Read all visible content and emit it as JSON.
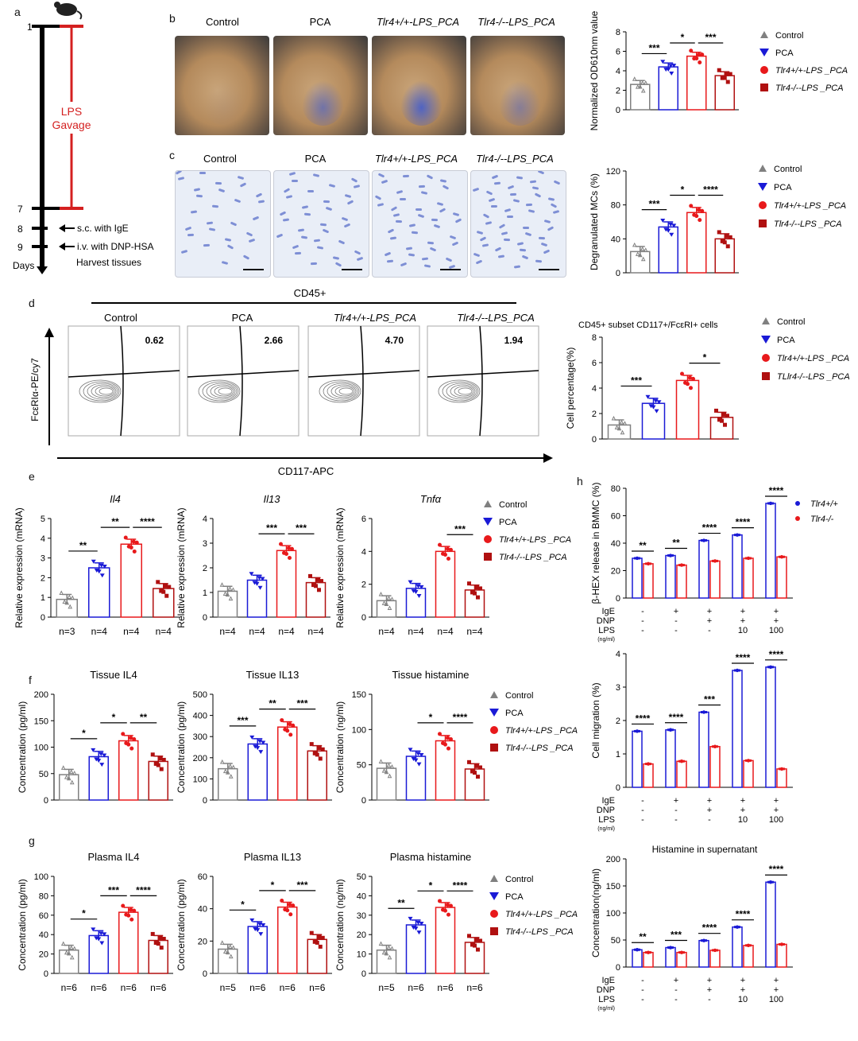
{
  "panel_letters": [
    "a",
    "b",
    "c",
    "d",
    "e",
    "f",
    "g",
    "h"
  ],
  "timeline": {
    "days": [
      "1",
      "7",
      "8",
      "9"
    ],
    "days_label": "Days",
    "gavage_label": [
      "LPS",
      "Gavage"
    ],
    "steps": [
      "s.c. with IgE",
      "i.v. with DNP-HSA",
      "Harvest tissues"
    ]
  },
  "groups": [
    "Control",
    "PCA",
    "Tlr4+/+-LPS_PCA",
    "Tlr4-/--LPS_PCA"
  ],
  "legend": {
    "control": "Control",
    "pca": "PCA",
    "wt": "Tlr4+/+-LPS _PCA",
    "ko": "Tlr4-/--LPS _PCA",
    "ko_d": "TLlr4-/--LPS _PCA"
  },
  "colors": {
    "control": "#808080",
    "pca": "#1a1ad6",
    "wt": "#e8191b",
    "ko": "#b01010"
  },
  "cd45_label": "CD45+",
  "d_title": "CD45+ subset CD117+/FcεRI+ cells",
  "facs": {
    "values": [
      "0.62",
      "2.66",
      "4.70",
      "1.94"
    ],
    "ylabel": "FcεRIα-PE/cy7",
    "xlabel": "CD117-APC"
  },
  "h_legend": {
    "wt": "Tlr4+/+",
    "ko": "Tlr4-/-"
  },
  "treatments": {
    "labels": [
      "IgE",
      "DNP",
      "LPS"
    ],
    "unit": "(ng/ml)",
    "rows": [
      [
        "-",
        "+",
        "+",
        "+",
        "+"
      ],
      [
        "-",
        "-",
        "+",
        "+",
        "+"
      ],
      [
        "-",
        "-",
        "-",
        "10",
        "100"
      ]
    ]
  },
  "chart_data": [
    {
      "id": "b",
      "type": "bar",
      "title": "",
      "ylabel": "Normalized OD610nm value",
      "ylim": [
        0,
        8
      ],
      "ticks": [
        0,
        2,
        4,
        6,
        8
      ],
      "categories": [
        "Control",
        "PCA",
        "Tlr4+/+-LPS_PCA",
        "Tlr4-/--LPS_PCA"
      ],
      "values": [
        2.6,
        4.4,
        5.5,
        3.5
      ],
      "sig": [
        {
          "a": 0,
          "b": 1,
          "t": "***"
        },
        {
          "a": 1,
          "b": 2,
          "t": "*"
        },
        {
          "a": 2,
          "b": 3,
          "t": "***"
        }
      ],
      "n": []
    },
    {
      "id": "c",
      "type": "bar",
      "title": "",
      "ylabel": "Degranulated MCs (%)",
      "ylim": [
        0,
        120
      ],
      "ticks": [
        0,
        40,
        80,
        120
      ],
      "categories": [
        "Control",
        "PCA",
        "Tlr4+/+-LPS_PCA",
        "Tlr4-/--LPS_PCA"
      ],
      "values": [
        25,
        54,
        71,
        40
      ],
      "sig": [
        {
          "a": 0,
          "b": 1,
          "t": "***"
        },
        {
          "a": 1,
          "b": 2,
          "t": "*"
        },
        {
          "a": 2,
          "b": 3,
          "t": "****"
        }
      ],
      "n": []
    },
    {
      "id": "d",
      "type": "bar",
      "title": "",
      "ylabel": "Cell percentage(%)",
      "ylim": [
        0,
        8
      ],
      "ticks": [
        0,
        2,
        4,
        6,
        8
      ],
      "categories": [
        "Control",
        "PCA",
        "Tlr4+/+-LPS_PCA",
        "Tlr4-/--LPS_PCA"
      ],
      "values": [
        1.1,
        2.8,
        4.6,
        1.7
      ],
      "sig": [
        {
          "a": 0,
          "b": 1,
          "t": "***"
        },
        {
          "a": 2,
          "b": 3,
          "t": "*"
        }
      ],
      "n": []
    },
    {
      "id": "e1",
      "type": "bar",
      "title": "Il4",
      "italic": true,
      "ylabel": "Relative expression (mRNA)",
      "ylim": [
        0,
        5
      ],
      "ticks": [
        0,
        1,
        2,
        3,
        4,
        5
      ],
      "categories": [
        "Control",
        "PCA",
        "Tlr4+/+-LPS_PCA",
        "Tlr4-/--LPS_PCA"
      ],
      "values": [
        0.9,
        2.5,
        3.7,
        1.45
      ],
      "sig": [
        {
          "a": 0,
          "b": 1,
          "t": "**"
        },
        {
          "a": 1,
          "b": 2,
          "t": "**"
        },
        {
          "a": 2,
          "b": 3,
          "t": "****"
        }
      ],
      "n": [
        "n=3",
        "n=4",
        "n=4",
        "n=4"
      ]
    },
    {
      "id": "e2",
      "type": "bar",
      "title": "Il13",
      "italic": true,
      "ylabel": "Relative expression (mRNA)",
      "ylim": [
        0,
        4
      ],
      "ticks": [
        0,
        1,
        2,
        3,
        4
      ],
      "categories": [
        "Control",
        "PCA",
        "Tlr4+/+-LPS_PCA",
        "Tlr4-/--LPS_PCA"
      ],
      "values": [
        1.05,
        1.5,
        2.7,
        1.4
      ],
      "sig": [
        {
          "a": 1,
          "b": 2,
          "t": "***"
        },
        {
          "a": 2,
          "b": 3,
          "t": "***"
        }
      ],
      "n": [
        "n=4",
        "n=4",
        "n=4",
        "n=4"
      ]
    },
    {
      "id": "e3",
      "type": "bar",
      "title": "Tnfα",
      "italic": true,
      "ylabel": "Relative expression (mRNA)",
      "ylim": [
        0,
        6
      ],
      "ticks": [
        0,
        2,
        4,
        6
      ],
      "categories": [
        "Control",
        "PCA",
        "Tlr4+/+-LPS_PCA",
        "Tlr4-/--LPS_PCA"
      ],
      "values": [
        1.0,
        1.75,
        4.0,
        1.65
      ],
      "sig": [
        {
          "a": 2,
          "b": 3,
          "t": "***"
        }
      ],
      "n": [
        "n=4",
        "n=4",
        "n=4",
        "n=4"
      ]
    },
    {
      "id": "f1",
      "type": "bar",
      "title": "Tissue IL4",
      "ylabel": "Concentration (pg/ml)",
      "ylim": [
        0,
        200
      ],
      "ticks": [
        0,
        50,
        100,
        150,
        200
      ],
      "categories": [
        "Control",
        "PCA",
        "Tlr4+/+-LPS_PCA",
        "Tlr4-/--LPS_PCA"
      ],
      "values": [
        48,
        82,
        112,
        73
      ],
      "sig": [
        {
          "a": 0,
          "b": 1,
          "t": "*"
        },
        {
          "a": 1,
          "b": 2,
          "t": "*"
        },
        {
          "a": 2,
          "b": 3,
          "t": "**"
        }
      ],
      "n": []
    },
    {
      "id": "f2",
      "type": "bar",
      "title": "Tissue IL13",
      "ylabel": "Concentration (pg/ml)",
      "ylim": [
        0,
        500
      ],
      "ticks": [
        0,
        100,
        200,
        300,
        400,
        500
      ],
      "categories": [
        "Control",
        "PCA",
        "Tlr4+/+-LPS_PCA",
        "Tlr4-/--LPS_PCA"
      ],
      "values": [
        148,
        265,
        345,
        232
      ],
      "sig": [
        {
          "a": 0,
          "b": 1,
          "t": "***"
        },
        {
          "a": 1,
          "b": 2,
          "t": "**"
        },
        {
          "a": 2,
          "b": 3,
          "t": "***"
        }
      ],
      "n": []
    },
    {
      "id": "f3",
      "type": "bar",
      "title": "Tissue histamine",
      "ylabel": "Concentration (ng/ml)",
      "ylim": [
        0,
        150
      ],
      "ticks": [
        0,
        50,
        100,
        150
      ],
      "categories": [
        "Control",
        "PCA",
        "Tlr4+/+-LPS_PCA",
        "Tlr4-/--LPS_PCA"
      ],
      "values": [
        45,
        62,
        84,
        44
      ],
      "sig": [
        {
          "a": 1,
          "b": 2,
          "t": "*"
        },
        {
          "a": 2,
          "b": 3,
          "t": "****"
        }
      ],
      "n": []
    },
    {
      "id": "g1",
      "type": "bar",
      "title": "Plasma IL4",
      "ylabel": "Concentration (pg/ml)",
      "ylim": [
        0,
        100
      ],
      "ticks": [
        0,
        20,
        40,
        60,
        80,
        100
      ],
      "categories": [
        "Control",
        "PCA",
        "Tlr4+/+-LPS_PCA",
        "Tlr4-/--LPS_PCA"
      ],
      "values": [
        24,
        39,
        63,
        34
      ],
      "sig": [
        {
          "a": 0,
          "b": 1,
          "t": "*"
        },
        {
          "a": 1,
          "b": 2,
          "t": "***"
        },
        {
          "a": 2,
          "b": 3,
          "t": "****"
        }
      ],
      "n": [
        "n=6",
        "n=6",
        "n=6",
        "n=6"
      ]
    },
    {
      "id": "g2",
      "type": "bar",
      "title": "Plasma IL13",
      "ylabel": "Concentration (pg/ml)",
      "ylim": [
        0,
        60
      ],
      "ticks": [
        0,
        20,
        40,
        60
      ],
      "categories": [
        "Control",
        "PCA",
        "Tlr4+/+-LPS_PCA",
        "Tlr4-/--LPS_PCA"
      ],
      "values": [
        15,
        29,
        41,
        21
      ],
      "sig": [
        {
          "a": 0,
          "b": 1,
          "t": "*"
        },
        {
          "a": 1,
          "b": 2,
          "t": "*"
        },
        {
          "a": 2,
          "b": 3,
          "t": "***"
        }
      ],
      "n": [
        "n=5",
        "n=6",
        "n=6",
        "n=6"
      ]
    },
    {
      "id": "g3",
      "type": "bar",
      "title": "Plasma histamine",
      "ylabel": "Concentration (ng/ml)",
      "ylim": [
        0,
        50
      ],
      "ticks": [
        0,
        10,
        20,
        30,
        40,
        50
      ],
      "categories": [
        "Control",
        "PCA",
        "Tlr4+/+-LPS_PCA",
        "Tlr4-/--LPS_PCA"
      ],
      "values": [
        12,
        25,
        34,
        16
      ],
      "sig": [
        {
          "a": 0,
          "b": 1,
          "t": "**"
        },
        {
          "a": 1,
          "b": 2,
          "t": "*"
        },
        {
          "a": 2,
          "b": 3,
          "t": "****"
        }
      ],
      "n": [
        "n=5",
        "n=6",
        "n=6",
        "n=6"
      ]
    },
    {
      "id": "h1",
      "type": "grouped-bar",
      "title": "",
      "ylabel": "β-HEX release in BMMC (%)",
      "ylim": [
        0,
        80
      ],
      "ticks": [
        0,
        20,
        40,
        60,
        80
      ],
      "series": [
        {
          "name": "Tlr4+/+",
          "values": [
            29,
            31,
            42,
            46,
            69
          ]
        },
        {
          "name": "Tlr4-/-",
          "values": [
            25,
            24,
            27,
            29,
            30
          ]
        }
      ],
      "sig": [
        "**",
        "**",
        "****",
        "****",
        "****"
      ]
    },
    {
      "id": "h2",
      "type": "grouped-bar",
      "title": "",
      "ylabel": "Cell migration (%)",
      "ylim": [
        0,
        4
      ],
      "ticks": [
        0,
        1,
        2,
        3,
        4
      ],
      "series": [
        {
          "name": "Tlr4+/+",
          "values": [
            1.68,
            1.72,
            2.25,
            3.5,
            3.6
          ]
        },
        {
          "name": "Tlr4-/-",
          "values": [
            0.7,
            0.78,
            1.22,
            0.8,
            0.55
          ]
        }
      ],
      "sig": [
        "****",
        "****",
        "***",
        "****",
        "****"
      ]
    },
    {
      "id": "h3",
      "type": "grouped-bar",
      "title": "Histamine in supernatant",
      "ylabel": "Concentration(ng/ml)",
      "ylim": [
        0,
        200
      ],
      "ticks": [
        0,
        50,
        100,
        150,
        200
      ],
      "series": [
        {
          "name": "Tlr4+/+",
          "values": [
            32,
            36,
            49,
            74,
            157
          ]
        },
        {
          "name": "Tlr4-/-",
          "values": [
            27,
            27,
            31,
            40,
            42
          ]
        }
      ],
      "sig": [
        "**",
        "***",
        "****",
        "****",
        "****"
      ]
    }
  ]
}
